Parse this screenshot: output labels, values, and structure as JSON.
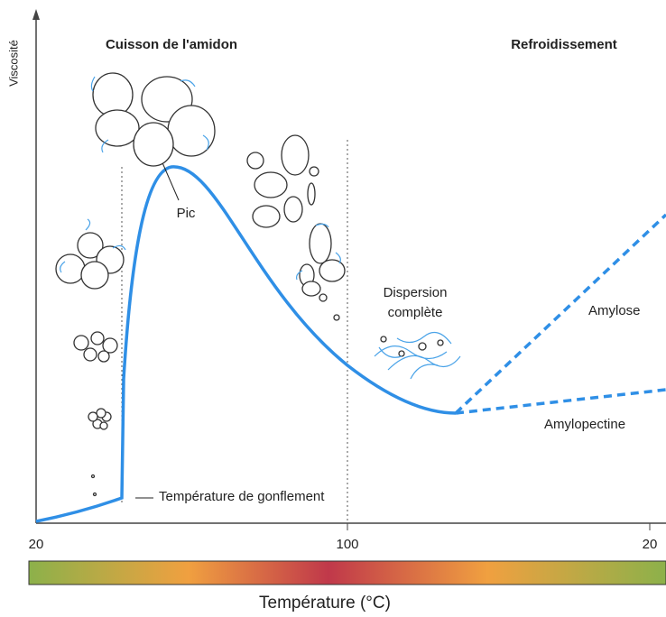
{
  "axis": {
    "y_label": "Viscosité",
    "x_label": "Température (°C)",
    "x_ticks": [
      "20",
      "100",
      "20"
    ]
  },
  "phases": [
    "Cuisson de l'amidon",
    "Refroidissement"
  ],
  "annotations": {
    "peak": "Pic",
    "dispersion": [
      "Dispersion",
      "complète"
    ],
    "swelling": "Température de gonflement",
    "amylose": "Amylose",
    "amylopectin": "Amylopectine"
  }
}
